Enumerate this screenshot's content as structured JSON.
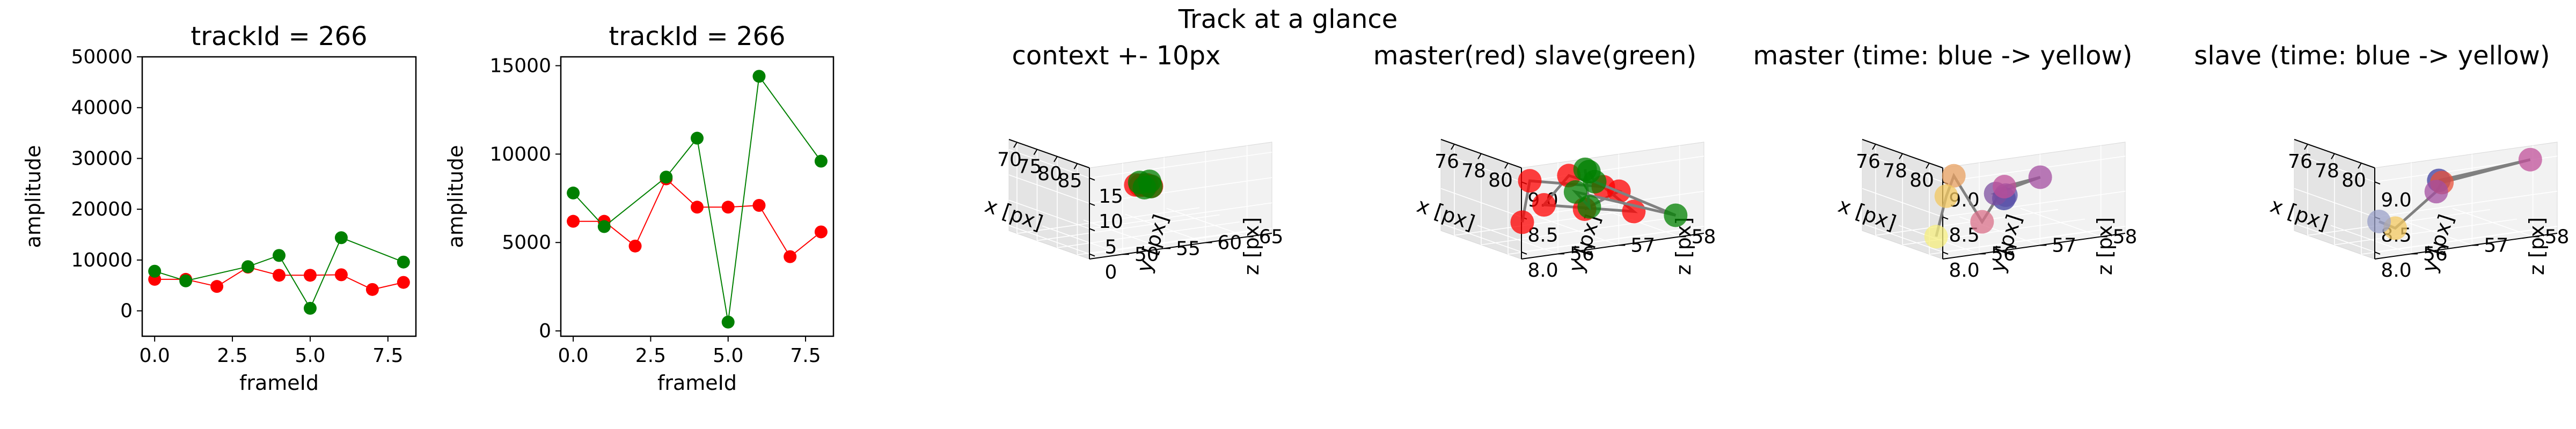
{
  "figure": {
    "suptitle": "Track at a glance"
  },
  "chart_data": [
    {
      "type": "line",
      "title": "trackId = 266",
      "xlabel": "frameId",
      "ylabel": "amplitude",
      "xlim": [
        -0.4,
        8.4
      ],
      "ylim": [
        -5000,
        50000
      ],
      "xticks": [
        0,
        2.5,
        5,
        7.5
      ],
      "xtick_labels": [
        "0.0",
        "2.5",
        "5.0",
        "7.5"
      ],
      "yticks": [
        0,
        10000,
        20000,
        30000,
        40000,
        50000
      ],
      "ytick_labels": [
        "0",
        "10000",
        "20000",
        "30000",
        "40000",
        "50000"
      ],
      "series": [
        {
          "color": "#ff0000",
          "x": [
            0,
            1,
            2,
            3,
            4,
            5,
            6,
            7,
            8
          ],
          "y": [
            6200,
            6200,
            4800,
            8600,
            7000,
            7000,
            7100,
            4200,
            5600
          ]
        },
        {
          "color": "#008000",
          "x": [
            0,
            1,
            3,
            4,
            5,
            6,
            8
          ],
          "y": [
            7800,
            5900,
            8700,
            10900,
            500,
            14400,
            9600
          ]
        }
      ]
    },
    {
      "type": "line",
      "title": "trackId = 266",
      "xlabel": "frameId",
      "ylabel": "amplitude",
      "xlim": [
        -0.4,
        8.4
      ],
      "ylim": [
        -300,
        15500
      ],
      "xticks": [
        0,
        2.5,
        5,
        7.5
      ],
      "xtick_labels": [
        "0.0",
        "2.5",
        "5.0",
        "7.5"
      ],
      "yticks": [
        0,
        5000,
        10000,
        15000
      ],
      "ytick_labels": [
        "0",
        "5000",
        "10000",
        "15000"
      ],
      "series": [
        {
          "color": "#ff0000",
          "x": [
            0,
            1,
            2,
            3,
            4,
            5,
            6,
            7,
            8
          ],
          "y": [
            6200,
            6200,
            4800,
            8600,
            7000,
            7000,
            7100,
            4200,
            5600
          ]
        },
        {
          "color": "#008000",
          "x": [
            0,
            1,
            3,
            4,
            5,
            6,
            8
          ],
          "y": [
            7800,
            5900,
            8700,
            10900,
            500,
            14400,
            9600
          ]
        }
      ]
    },
    {
      "type": "scatter",
      "projection": "3d",
      "title": "context +- 10px",
      "xlabel": "x [px]",
      "ylabel": "y [px]",
      "zlabel": "z [px]",
      "xlim": [
        68,
        88
      ],
      "ylim": [
        -1,
        17
      ],
      "zlim": [
        46,
        68
      ],
      "xticks": [
        70,
        75,
        80,
        85
      ],
      "yticks": [
        0,
        5,
        10,
        15
      ],
      "zticks": [
        50,
        55,
        60,
        65
      ],
      "series": [
        {
          "color": "#ff0000",
          "x": [
            78,
            79,
            80,
            78.5,
            79.5
          ],
          "y": [
            8.2,
            8.5,
            8.9,
            8.6,
            8.3
          ],
          "z": [
            57,
            57.3,
            56.6,
            56.2,
            57.6
          ]
        },
        {
          "color": "#008000",
          "x": [
            77,
            78.4,
            79.2,
            80.4
          ],
          "y": [
            8.4,
            8.9,
            8.1,
            8.6
          ],
          "z": [
            57.4,
            57.9,
            56.9,
            57.1
          ]
        }
      ]
    },
    {
      "type": "scatter",
      "projection": "3d",
      "title": "master(red) slave(green)",
      "xlabel": "x [px]",
      "ylabel": "y [px]",
      "zlabel": "z [px]",
      "xlim": [
        75,
        81
      ],
      "ylim": [
        7.9,
        9.2
      ],
      "zlim": [
        55.4,
        58.4
      ],
      "xticks": [
        76,
        78,
        80
      ],
      "yticks": [
        8.0,
        8.5,
        9.0
      ],
      "zticks": [
        56,
        57,
        58
      ],
      "series": [
        {
          "color": "#ff0000",
          "x": [
            78.0,
            79.2,
            80.0,
            78.6,
            79.4,
            80.3,
            78.9,
            79.7
          ],
          "y": [
            8.2,
            8.5,
            8.9,
            8.4,
            8.2,
            8.7,
            8.8,
            8.3
          ],
          "z": [
            57.1,
            57.4,
            56.4,
            56.3,
            57.6,
            56.9,
            56.0,
            55.7
          ]
        },
        {
          "color": "#008000",
          "x": [
            75.6,
            78.3,
            79.8,
            80.5,
            78.8,
            79.4
          ],
          "y": [
            8.5,
            8.6,
            8.1,
            8.7,
            8.3,
            8.9
          ],
          "z": [
            57.7,
            57.2,
            58.2,
            56.4,
            57.0,
            56.8
          ]
        }
      ]
    },
    {
      "type": "scatter",
      "projection": "3d",
      "title": "master (time: blue -> yellow)",
      "xlabel": "x [px]",
      "ylabel": "y [px]",
      "zlabel": "z [px]",
      "xlim": [
        75,
        81
      ],
      "ylim": [
        7.9,
        9.2
      ],
      "zlim": [
        55.4,
        58.4
      ],
      "xticks": [
        76,
        78,
        80
      ],
      "yticks": [
        8.0,
        8.5,
        9.0
      ],
      "zticks": [
        56,
        57,
        58
      ],
      "series": [
        {
          "colors": [
            "#3d3d9e",
            "#5a4fa8",
            "#7e4fa0",
            "#a34ea0",
            "#c0509a",
            "#d9708a",
            "#e8a060",
            "#f3c860",
            "#f7ef80"
          ],
          "x": [
            77.4,
            78.0,
            78.6,
            79.2,
            78.8,
            79.4,
            78.2,
            79.0,
            79.6
          ],
          "y": [
            8.3,
            8.4,
            8.5,
            8.7,
            8.6,
            8.2,
            8.8,
            8.6,
            8.1
          ],
          "z": [
            57.2,
            57.1,
            56.8,
            57.4,
            56.9,
            56.4,
            56.2,
            55.9,
            55.6
          ]
        }
      ]
    },
    {
      "type": "scatter",
      "projection": "3d",
      "title": "slave (time: blue -> yellow)",
      "xlabel": "x [px]",
      "ylabel": "y [px]",
      "zlabel": "z [px]",
      "xlim": [
        75,
        81
      ],
      "ylim": [
        7.9,
        9.2
      ],
      "zlim": [
        55.4,
        58.4
      ],
      "xticks": [
        76,
        78,
        80
      ],
      "yticks": [
        8.0,
        8.5,
        9.0
      ],
      "zticks": [
        56,
        57,
        58
      ],
      "series": [
        {
          "colors": [
            "#3d3d9e",
            "#c0509a",
            "#e8503a",
            "#a34ea0",
            "#f3c860",
            "#9aa0c8"
          ],
          "x": [
            75.8,
            79.9,
            78.3,
            80.6,
            78.9,
            78.6
          ],
          "y": [
            8.4,
            8.9,
            8.6,
            8.7,
            8.1,
            8.2
          ],
          "z": [
            57.6,
            58.2,
            57.1,
            56.5,
            56.2,
            56.0
          ]
        }
      ]
    }
  ]
}
